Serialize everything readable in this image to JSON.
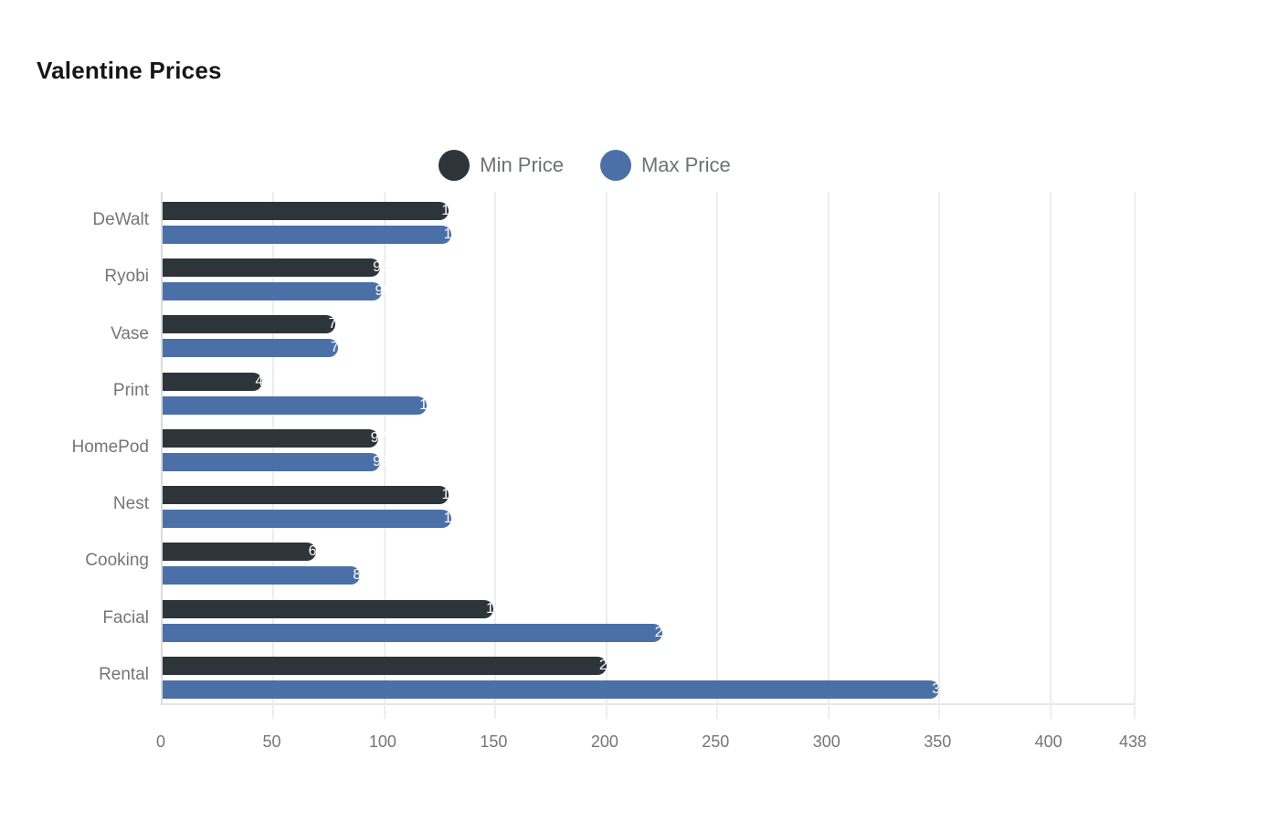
{
  "title": "Valentine Prices",
  "legend": {
    "items": [
      {
        "label": "Min Price",
        "color": "#2d353a"
      },
      {
        "label": "Max Price",
        "color": "#4b70a8"
      }
    ]
  },
  "colors": {
    "min_series": "#2d353a",
    "max_series": "#4b70a8",
    "gridline": "#ededed",
    "axis_line_left": "#d8dbe0",
    "axis_line_bottom": "#e6e6e6",
    "axis_text": "#757575",
    "legend_text": "#6d7277",
    "title_text": "#161616",
    "bar_value_text": "#ffffff",
    "background": "#ffffff"
  },
  "chart_data": {
    "type": "bar",
    "orientation": "horizontal",
    "title": "Valentine Prices",
    "categories": [
      "DeWalt",
      "Ryobi",
      "Vase",
      "Print",
      "HomePod",
      "Nest",
      "Cooking",
      "Facial",
      "Rental"
    ],
    "series": [
      {
        "name": "Min Price",
        "color": "#2d353a",
        "values": [
          129,
          98,
          78,
          45,
          97,
          129,
          69,
          149,
          200
        ]
      },
      {
        "name": "Max Price",
        "color": "#4b70a8",
        "values": [
          130,
          99,
          79,
          119,
          98,
          130,
          89,
          225,
          350
        ]
      }
    ],
    "xlabel": "",
    "ylabel": "",
    "xlim": [
      0,
      438
    ],
    "x_ticks": [
      0,
      50,
      100,
      150,
      200,
      250,
      300,
      350,
      400,
      438
    ],
    "grid": true,
    "legend_position": "top-center",
    "value_labels": "white text clipped at bar end"
  }
}
